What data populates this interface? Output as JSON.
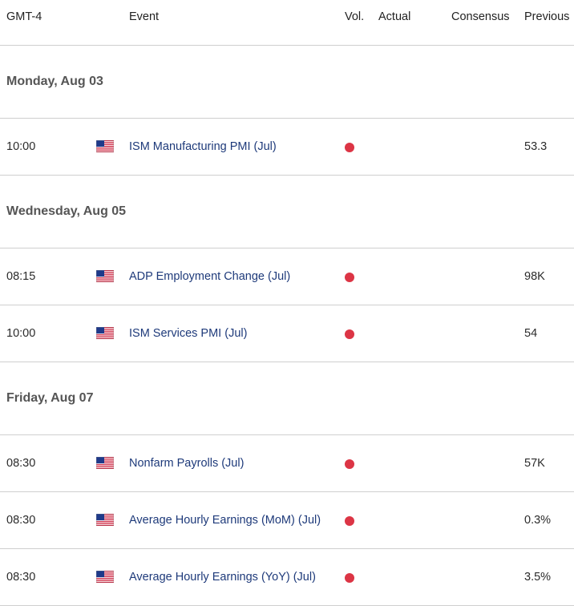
{
  "header": {
    "timezone": "GMT-4",
    "event": "Event",
    "vol": "Vol.",
    "actual": "Actual",
    "consensus": "Consensus",
    "previous": "Previous"
  },
  "days": [
    {
      "label": "Monday, Aug 03",
      "events": [
        {
          "time": "10:00",
          "country_icon": "us-flag-icon",
          "name": "ISM Manufacturing PMI (Jul)",
          "volatility": "high",
          "actual": "",
          "consensus": "",
          "previous": "53.3"
        }
      ]
    },
    {
      "label": "Wednesday, Aug 05",
      "events": [
        {
          "time": "08:15",
          "country_icon": "us-flag-icon",
          "name": "ADP Employment Change (Jul)",
          "volatility": "high",
          "actual": "",
          "consensus": "",
          "previous": "98K"
        },
        {
          "time": "10:00",
          "country_icon": "us-flag-icon",
          "name": "ISM Services PMI (Jul)",
          "volatility": "high",
          "actual": "",
          "consensus": "",
          "previous": "54"
        }
      ]
    },
    {
      "label": "Friday, Aug 07",
      "events": [
        {
          "time": "08:30",
          "country_icon": "us-flag-icon",
          "name": "Nonfarm Payrolls (Jul)",
          "volatility": "high",
          "actual": "",
          "consensus": "",
          "previous": "57K"
        },
        {
          "time": "08:30",
          "country_icon": "us-flag-icon",
          "name": "Average Hourly Earnings (MoM) (Jul)",
          "volatility": "high",
          "actual": "",
          "consensus": "",
          "previous": "0.3%"
        },
        {
          "time": "08:30",
          "country_icon": "us-flag-icon",
          "name": "Average Hourly Earnings (YoY) (Jul)",
          "volatility": "high",
          "actual": "",
          "consensus": "",
          "previous": "3.5%"
        }
      ]
    }
  ],
  "colors": {
    "high_volatility": "#dc3545",
    "event_text": "#1e3a7a",
    "divider": "#cfcfcf"
  }
}
